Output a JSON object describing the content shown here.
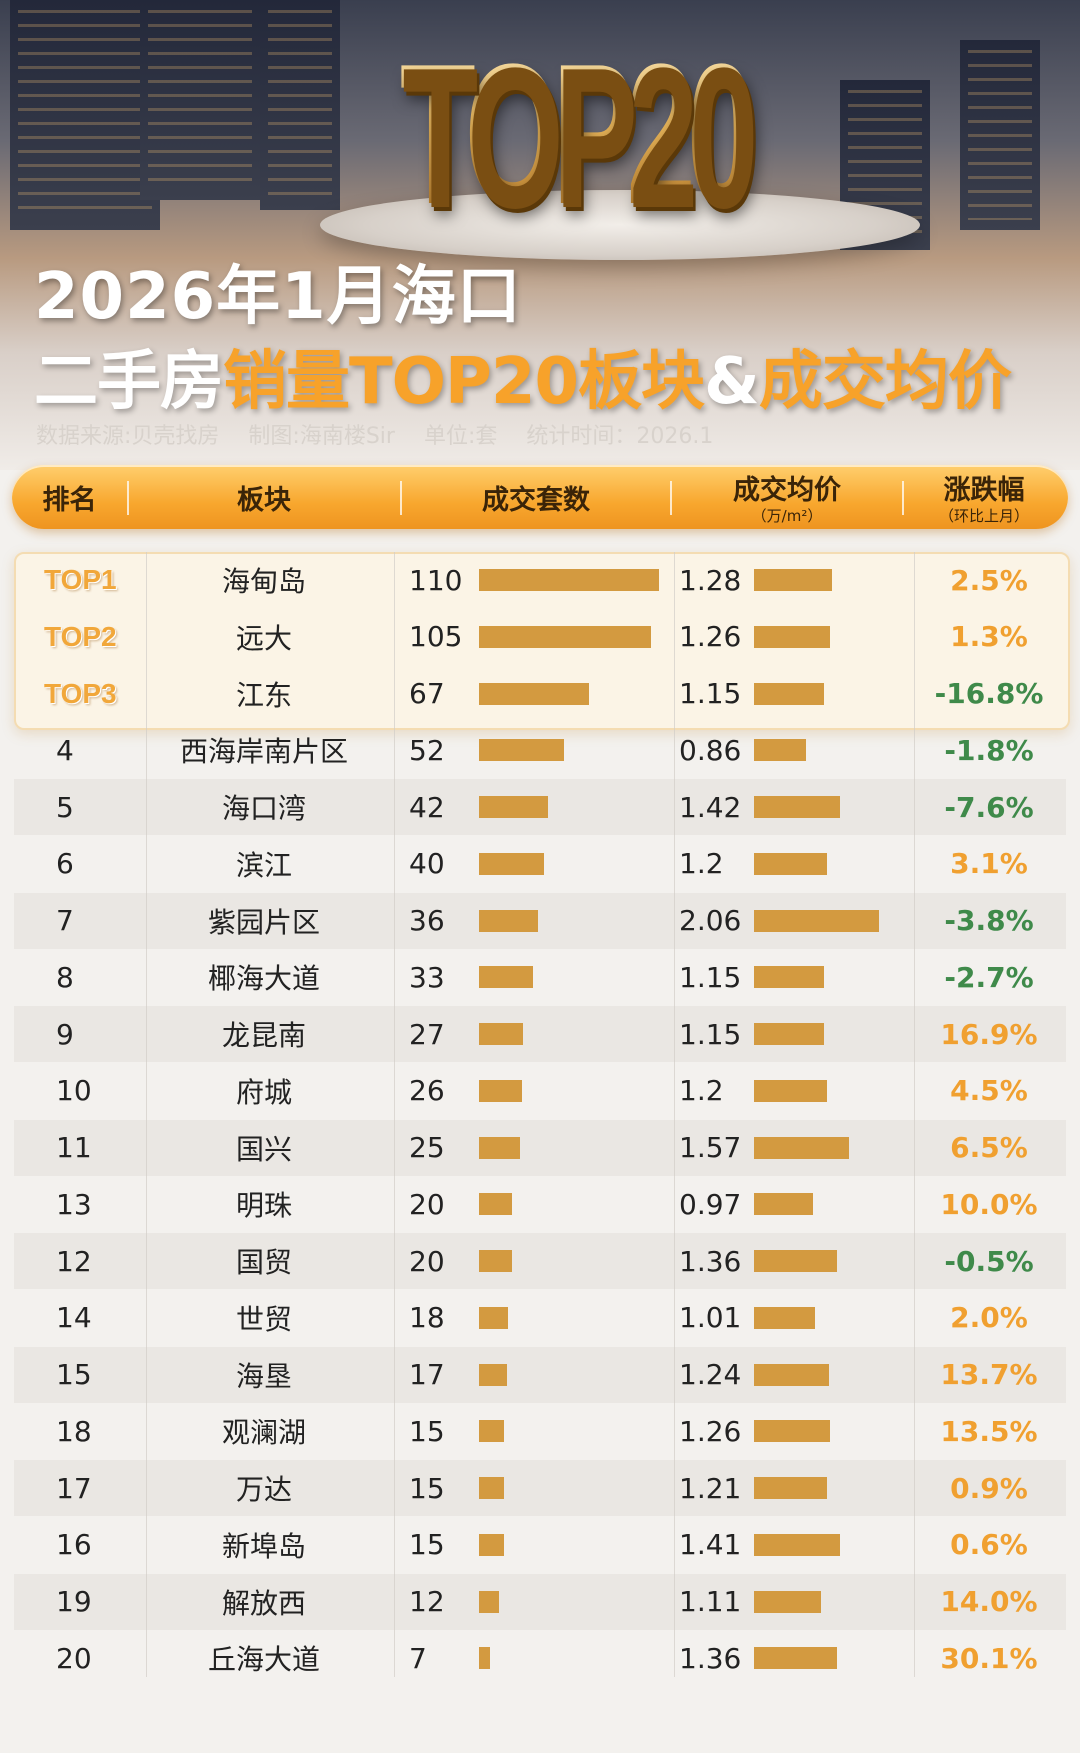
{
  "hero": {
    "badge": "TOP20"
  },
  "title": {
    "line1": "2026年1月海口",
    "line2_prefix": "二手房",
    "line2_highlight1": "销量TOP20板块",
    "line2_amp": "&",
    "line2_highlight2": "成交均价"
  },
  "meta": {
    "source": "数据来源:贝壳找房",
    "maker": "制图:海南楼Sir",
    "unit": "单位:套",
    "time": "统计时间：2026.1"
  },
  "header": {
    "rank": "排名",
    "area": "板块",
    "count": "成交套数",
    "price": "成交均价",
    "price_unit": "（万/m²）",
    "change": "涨跌幅",
    "change_note": "（环比上月）"
  },
  "colors": {
    "accent": "#f7a22a",
    "bar": "#d39a40",
    "up": "#f0a030",
    "down": "#3f8a4a"
  },
  "chart_data": {
    "type": "table",
    "columns": [
      "排名",
      "板块",
      "成交套数",
      "成交均价",
      "涨跌幅"
    ],
    "rows": [
      {
        "rank": "TOP1",
        "area": "海甸岛",
        "count": 110,
        "price": 1.28,
        "change": "2.5%"
      },
      {
        "rank": "TOP2",
        "area": "远大",
        "count": 105,
        "price": 1.26,
        "change": "1.3%"
      },
      {
        "rank": "TOP3",
        "area": "江东",
        "count": 67,
        "price": 1.15,
        "change": "-16.8%"
      },
      {
        "rank": "4",
        "area": "西海岸南片区",
        "count": 52,
        "price": 0.86,
        "change": "-1.8%"
      },
      {
        "rank": "5",
        "area": "海口湾",
        "count": 42,
        "price": 1.42,
        "change": "-7.6%"
      },
      {
        "rank": "6",
        "area": "滨江",
        "count": 40,
        "price": "1.2",
        "change": "3.1%"
      },
      {
        "rank": "7",
        "area": "紫园片区",
        "count": 36,
        "price": 2.06,
        "change": "-3.8%"
      },
      {
        "rank": "8",
        "area": "椰海大道",
        "count": 33,
        "price": 1.15,
        "change": "-2.7%"
      },
      {
        "rank": "9",
        "area": "龙昆南",
        "count": 27,
        "price": 1.15,
        "change": "16.9%"
      },
      {
        "rank": "10",
        "area": "府城",
        "count": 26,
        "price": "1.2",
        "change": "4.5%"
      },
      {
        "rank": "11",
        "area": "国兴",
        "count": 25,
        "price": 1.57,
        "change": "6.5%"
      },
      {
        "rank": "13",
        "area": "明珠",
        "count": 20,
        "price": 0.97,
        "change": "10.0%"
      },
      {
        "rank": "12",
        "area": "国贸",
        "count": 20,
        "price": 1.36,
        "change": "-0.5%"
      },
      {
        "rank": "14",
        "area": "世贸",
        "count": 18,
        "price": 1.01,
        "change": "2.0%"
      },
      {
        "rank": "15",
        "area": "海垦",
        "count": 17,
        "price": 1.24,
        "change": "13.7%"
      },
      {
        "rank": "18",
        "area": "观澜湖",
        "count": 15,
        "price": 1.26,
        "change": "13.5%"
      },
      {
        "rank": "17",
        "area": "万达",
        "count": 15,
        "price": 1.21,
        "change": "0.9%"
      },
      {
        "rank": "16",
        "area": "新埠岛",
        "count": 15,
        "price": 1.41,
        "change": "0.6%"
      },
      {
        "rank": "19",
        "area": "解放西",
        "count": 12,
        "price": 1.11,
        "change": "14.0%"
      },
      {
        "rank": "20",
        "area": "丘海大道",
        "count": 7,
        "price": 1.36,
        "change": "30.1%"
      }
    ]
  }
}
